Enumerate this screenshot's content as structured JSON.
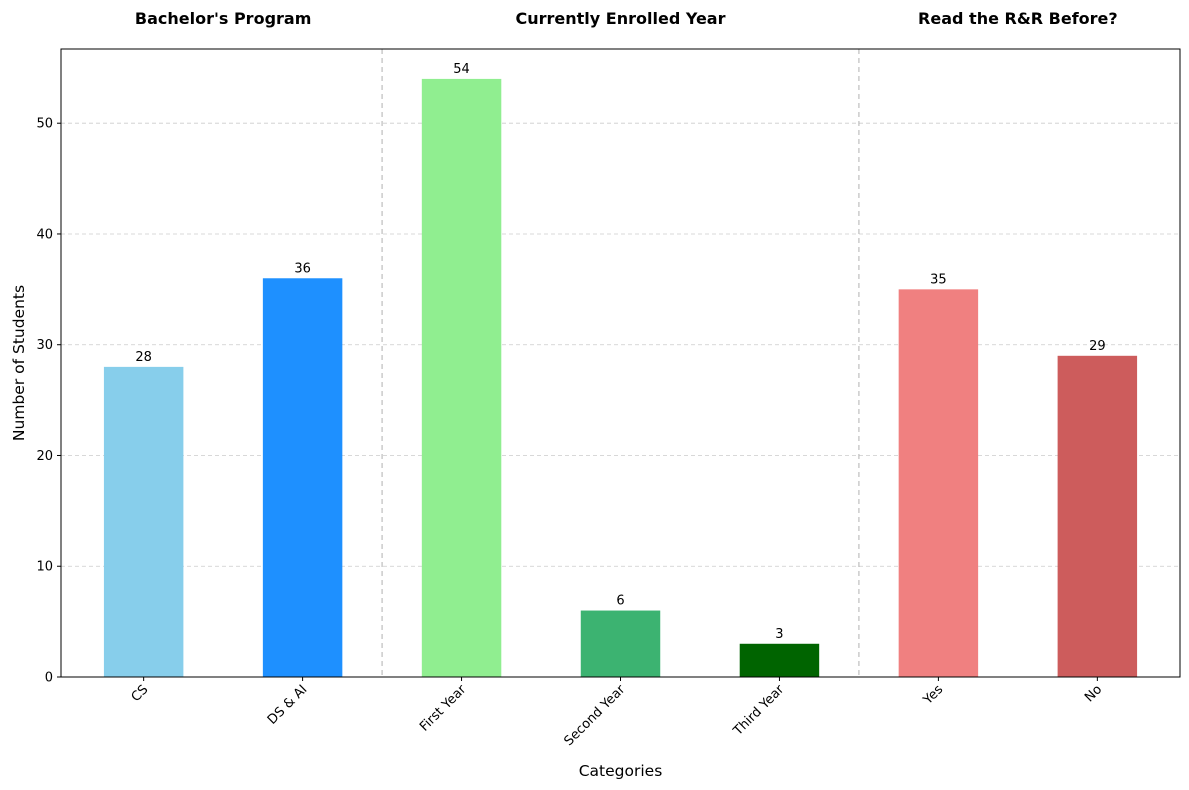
{
  "chart_data": {
    "type": "bar",
    "group_titles": [
      "Bachelor's Program",
      "Currently Enrolled Year",
      "Read the R&R Before?"
    ],
    "groups": [
      {
        "title": "Bachelor's Program",
        "categories": [
          "CS",
          "DS & AI"
        ]
      },
      {
        "title": "Currently Enrolled Year",
        "categories": [
          "First Year",
          "Second Year",
          "Third Year"
        ]
      },
      {
        "title": "Read the R&R Before?",
        "categories": [
          "Yes",
          "No"
        ]
      }
    ],
    "categories": [
      "CS",
      "DS & AI",
      "First Year",
      "Second Year",
      "Third Year",
      "Yes",
      "No"
    ],
    "values": [
      28,
      36,
      54,
      6,
      3,
      35,
      29
    ],
    "colors": [
      "#87ceeb",
      "#1e90ff",
      "#90ee90",
      "#3cb371",
      "#006400",
      "#f08080",
      "#cd5c5c"
    ],
    "xlabel": "Categories",
    "ylabel": "Number of Students",
    "ylim": [
      0,
      56.7
    ],
    "yticks": [
      0,
      10,
      20,
      30,
      40,
      50
    ],
    "grid": "y-dashed",
    "group_separators": "dashed vertical lines",
    "legend": "none"
  }
}
